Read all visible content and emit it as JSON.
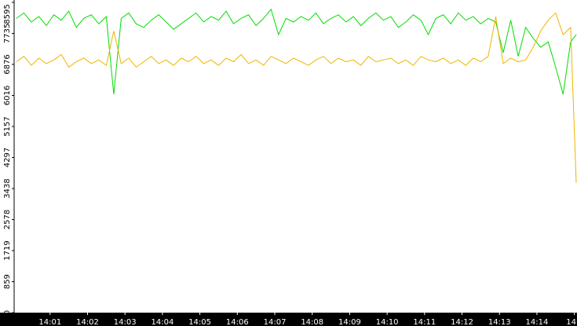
{
  "chart_data": {
    "type": "line",
    "x": [
      0.1,
      0.3,
      0.5,
      0.7,
      0.9,
      1.1,
      1.3,
      1.5,
      1.7,
      1.9,
      2.1,
      2.3,
      2.5,
      2.7,
      2.9,
      3.1,
      3.3,
      3.5,
      3.7,
      3.9,
      4.1,
      4.3,
      4.5,
      4.7,
      4.9,
      5.1,
      5.3,
      5.5,
      5.7,
      5.9,
      6.1,
      6.3,
      6.5,
      6.7,
      6.9,
      7.1,
      7.3,
      7.5,
      7.7,
      7.9,
      8.1,
      8.3,
      8.5,
      8.7,
      8.9,
      9.1,
      9.3,
      9.5,
      9.7,
      9.9,
      10.1,
      10.3,
      10.5,
      10.7,
      10.9,
      11.1,
      11.3,
      11.5,
      11.7,
      11.9,
      12.1,
      12.3,
      12.5,
      12.7,
      12.9,
      13.1,
      13.3,
      13.5,
      13.7,
      13.9,
      14.1,
      14.3,
      14.5,
      14.7,
      14.9,
      15.05
    ],
    "series": [
      {
        "color": "#00dd00",
        "values": [
          8150,
          8300,
          8050,
          8200,
          7950,
          8250,
          8100,
          8350,
          7900,
          8150,
          8250,
          8000,
          8200,
          6050,
          8150,
          8300,
          8000,
          7900,
          8100,
          8250,
          8050,
          7850,
          8000,
          8150,
          8300,
          8050,
          8200,
          8100,
          8350,
          8000,
          8150,
          8250,
          7950,
          8150,
          8400,
          7700,
          8150,
          8050,
          8200,
          8100,
          8300,
          8000,
          8150,
          8250,
          8050,
          8200,
          7950,
          8150,
          8300,
          8100,
          8200,
          7900,
          8050,
          8250,
          8100,
          7700,
          8150,
          8250,
          8000,
          8300,
          8100,
          8200,
          8000,
          8150,
          8050,
          7200,
          8100,
          7100,
          7900,
          7600,
          7350,
          7500,
          6800,
          6050,
          7500,
          7700
        ]
      },
      {
        "color": "#f0b400",
        "values": [
          6950,
          7100,
          6850,
          7050,
          6900,
          7000,
          7150,
          6800,
          6950,
          7050,
          6900,
          7000,
          6850,
          7800,
          6900,
          7050,
          6800,
          6950,
          7100,
          6900,
          7000,
          6850,
          7050,
          6950,
          7100,
          6900,
          7000,
          6850,
          7050,
          6950,
          7150,
          6900,
          7000,
          6850,
          7100,
          7000,
          6900,
          7050,
          6950,
          6850,
          7000,
          7100,
          6900,
          7050,
          6950,
          7000,
          6850,
          7100,
          6950,
          7000,
          7050,
          6900,
          7000,
          6850,
          7100,
          7000,
          6950,
          7050,
          6900,
          7000,
          6850,
          7050,
          6950,
          7100,
          8200,
          6900,
          7050,
          6950,
          7000,
          7350,
          7800,
          8100,
          8300,
          7700,
          7900,
          3600
        ]
      }
    ],
    "xlim": [
      0.04,
      15.07
    ],
    "xticks": [
      {
        "value": 1,
        "label": "14:01"
      },
      {
        "value": 2,
        "label": "14:02"
      },
      {
        "value": 3,
        "label": "14:03"
      },
      {
        "value": 4,
        "label": "14:04"
      },
      {
        "value": 5,
        "label": "14:05"
      },
      {
        "value": 6,
        "label": "14:06"
      },
      {
        "value": 7,
        "label": "14:07"
      },
      {
        "value": 8,
        "label": "14:08"
      },
      {
        "value": 9,
        "label": "14:09"
      },
      {
        "value": 10,
        "label": "14:10"
      },
      {
        "value": 11,
        "label": "14:11"
      },
      {
        "value": 12,
        "label": "14:12"
      },
      {
        "value": 13,
        "label": "14:13"
      },
      {
        "value": 14,
        "label": "14:14"
      },
      {
        "value": 15,
        "label": "14"
      }
    ],
    "ylim": [
      0,
      8660
    ],
    "yticks": [
      0,
      859,
      1719,
      2578,
      3438,
      4297,
      5157,
      6016,
      6876,
      7735,
      8595
    ]
  }
}
